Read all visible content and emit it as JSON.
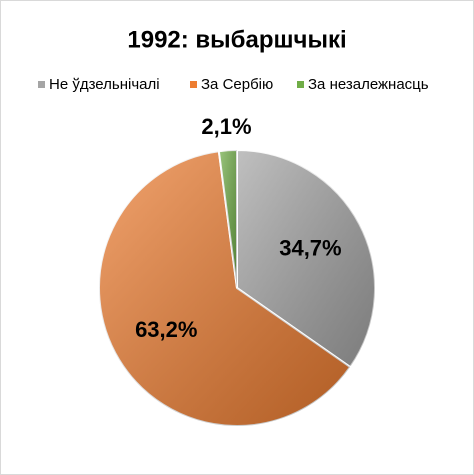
{
  "chart_data": {
    "type": "pie",
    "title": "1992: выбаршчыкі",
    "categories": [
      "Не ўдзельнічалі",
      "За Сербію",
      "За незалежнасць"
    ],
    "values": [
      34.7,
      63.2,
      2.1
    ],
    "value_labels": [
      "34,7%",
      "63,2%",
      "2,1%"
    ],
    "colors": [
      "#a5a5a5",
      "#ed7d31",
      "#70ad47"
    ],
    "legend": "top"
  }
}
